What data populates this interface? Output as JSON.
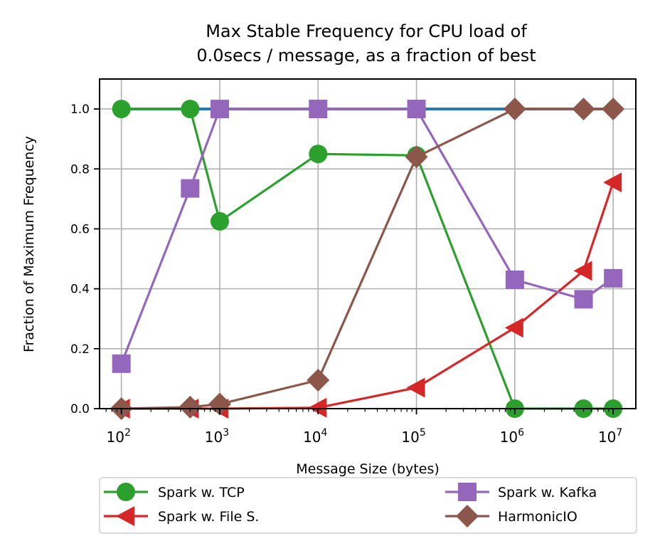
{
  "chart_data": {
    "type": "line",
    "title_lines": [
      "Max Stable Frequency for CPU load of",
      "0.0secs / message, as a fraction of best"
    ],
    "xlabel": "Message Size (bytes)",
    "ylabel": "Fraction of Maximum Frequency",
    "xscale": "log",
    "xlim": [
      60,
      17000000
    ],
    "ylim": [
      0.0,
      1.1
    ],
    "grid": true,
    "x_ticks": [
      {
        "value": 100,
        "base": "10",
        "exp": "2"
      },
      {
        "value": 1000,
        "base": "10",
        "exp": "3"
      },
      {
        "value": 10000,
        "base": "10",
        "exp": "4"
      },
      {
        "value": 100000,
        "base": "10",
        "exp": "5"
      },
      {
        "value": 1000000,
        "base": "10",
        "exp": "6"
      },
      {
        "value": 10000000,
        "base": "10",
        "exp": "7"
      }
    ],
    "y_ticks": [
      {
        "value": 0.0,
        "label": "0.0"
      },
      {
        "value": 0.2,
        "label": "0.2"
      },
      {
        "value": 0.4,
        "label": "0.4"
      },
      {
        "value": 0.6,
        "label": "0.6"
      },
      {
        "value": 0.8,
        "label": "0.8"
      },
      {
        "value": 1.0,
        "label": "1.0"
      }
    ],
    "background_series": {
      "name": "best",
      "color": "#1f77b4",
      "x": [
        100,
        500,
        1000,
        10000,
        100000,
        1000000,
        5000000,
        10000000
      ],
      "y": [
        1.0,
        1.0,
        1.0,
        1.0,
        1.0,
        1.0,
        1.0,
        1.0
      ]
    },
    "series": [
      {
        "name": "Spark w. TCP",
        "color": "#2ca02c",
        "marker": "circle",
        "x": [
          100,
          500,
          1000,
          10000,
          100000,
          1000000,
          5000000,
          10000000
        ],
        "y": [
          1.0,
          1.0,
          0.625,
          0.85,
          0.845,
          0.0,
          0.0,
          0.0
        ]
      },
      {
        "name": "Spark w. File S.",
        "color": "#d62728",
        "marker": "triangle-left",
        "x": [
          100,
          500,
          1000,
          10000,
          100000,
          1000000,
          5000000,
          10000000
        ],
        "y": [
          0.0,
          0.0,
          0.0,
          0.003,
          0.07,
          0.27,
          0.46,
          0.755
        ]
      },
      {
        "name": "Spark w. Kafka",
        "color": "#9467bd",
        "marker": "square",
        "x": [
          100,
          500,
          1000,
          10000,
          100000,
          1000000,
          5000000,
          10000000
        ],
        "y": [
          0.15,
          0.735,
          1.0,
          1.0,
          1.0,
          0.43,
          0.365,
          0.435
        ]
      },
      {
        "name": "HarmonicIO",
        "color": "#8c564b",
        "marker": "diamond",
        "x": [
          100,
          500,
          1000,
          10000,
          100000,
          1000000,
          5000000,
          10000000
        ],
        "y": [
          0.0,
          0.005,
          0.015,
          0.095,
          0.84,
          1.0,
          1.0,
          1.0
        ]
      }
    ],
    "legend": {
      "placement": "below",
      "columns": 2
    }
  }
}
